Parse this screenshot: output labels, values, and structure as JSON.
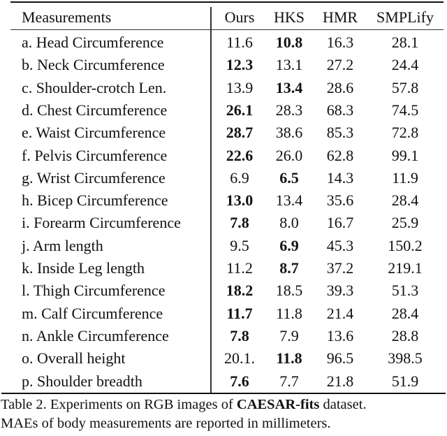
{
  "table": {
    "headers": [
      "Measurements",
      "Ours",
      "HKS",
      "HMR",
      "SMPLify"
    ],
    "rows": [
      {
        "label": "a. Head Circumference",
        "values": [
          "11.6",
          "10.8",
          "16.3",
          "28.1"
        ],
        "bold": [
          false,
          true,
          false,
          false
        ]
      },
      {
        "label": "b. Neck Circumference",
        "values": [
          "12.3",
          "13.1",
          "27.2",
          "24.4"
        ],
        "bold": [
          true,
          false,
          false,
          false
        ]
      },
      {
        "label": "c. Shoulder-crotch Len.",
        "values": [
          "13.9",
          "13.4",
          "28.6",
          "57.8"
        ],
        "bold": [
          false,
          true,
          false,
          false
        ]
      },
      {
        "label": "d. Chest Circumference",
        "values": [
          "26.1",
          "28.3",
          "68.3",
          "74.5"
        ],
        "bold": [
          true,
          false,
          false,
          false
        ]
      },
      {
        "label": "e. Waist Circumference",
        "values": [
          "28.7",
          "38.6",
          "85.3",
          "72.8"
        ],
        "bold": [
          true,
          false,
          false,
          false
        ]
      },
      {
        "label": "f. Pelvis Circumference",
        "values": [
          "22.6",
          "26.0",
          "62.8",
          "99.1"
        ],
        "bold": [
          true,
          false,
          false,
          false
        ]
      },
      {
        "label": "g. Wrist Circumference",
        "values": [
          "6.9",
          "6.5",
          "14.3",
          "11.9"
        ],
        "bold": [
          false,
          true,
          false,
          false
        ]
      },
      {
        "label": "h. Bicep Circumference",
        "values": [
          "13.0",
          "13.4",
          "35.6",
          "28.4"
        ],
        "bold": [
          true,
          false,
          false,
          false
        ]
      },
      {
        "label": "i. Forearm Circumference",
        "values": [
          "7.8",
          "8.0",
          "16.7",
          "25.9"
        ],
        "bold": [
          true,
          false,
          false,
          false
        ]
      },
      {
        "label": "j. Arm length",
        "values": [
          "9.5",
          "6.9",
          "45.3",
          "150.2"
        ],
        "bold": [
          false,
          true,
          false,
          false
        ]
      },
      {
        "label": "k. Inside Leg length",
        "values": [
          "11.2",
          "8.7",
          "37.2",
          "219.1"
        ],
        "bold": [
          false,
          true,
          false,
          false
        ]
      },
      {
        "label": "l. Thigh Circumference",
        "values": [
          "18.2",
          "18.5",
          "39.3",
          "51.3"
        ],
        "bold": [
          true,
          false,
          false,
          false
        ]
      },
      {
        "label": "m. Calf Circumference",
        "values": [
          "11.7",
          "11.8",
          "21.4",
          "28.4"
        ],
        "bold": [
          true,
          false,
          false,
          false
        ]
      },
      {
        "label": "n. Ankle Circumference",
        "values": [
          "7.8",
          "7.9",
          "13.6",
          "28.8"
        ],
        "bold": [
          true,
          false,
          false,
          false
        ]
      },
      {
        "label": "o. Overall height",
        "values": [
          "20.1.",
          "11.8",
          "96.5",
          "398.5"
        ],
        "bold": [
          false,
          true,
          false,
          false
        ]
      },
      {
        "label": "p. Shoulder breadth",
        "values": [
          "7.6",
          "7.7",
          "21.8",
          "51.9"
        ],
        "bold": [
          true,
          false,
          false,
          false
        ]
      }
    ]
  },
  "caption": {
    "line1_prefix": "Table 2. Experiments on RGB images of ",
    "line1_bold": "CAESAR-fits",
    "line1_suffix": " dataset.",
    "line2": "MAEs of body measurements are reported in millimeters."
  }
}
